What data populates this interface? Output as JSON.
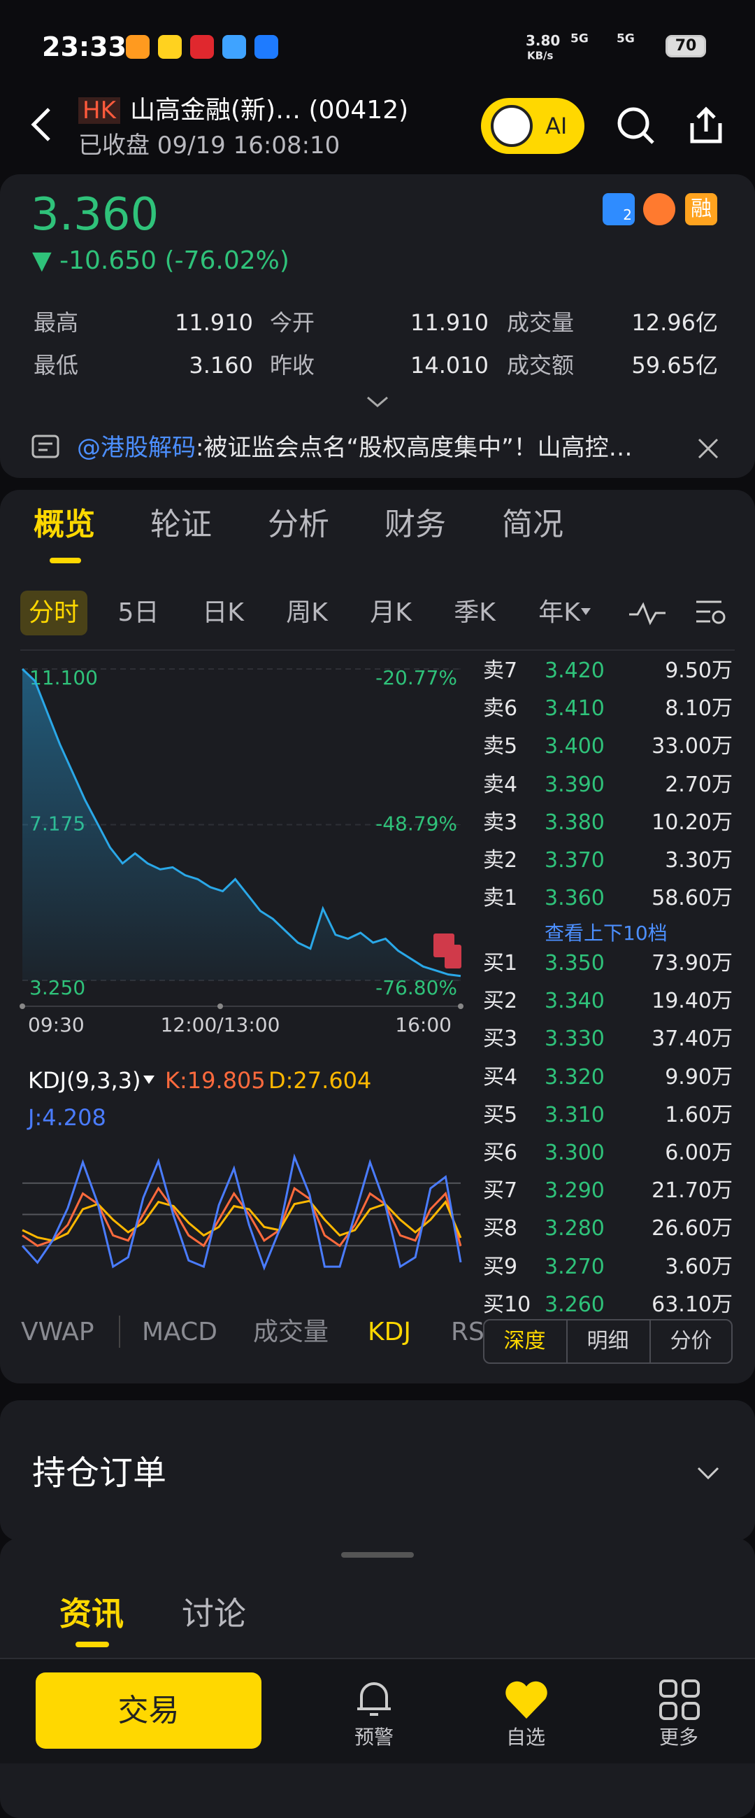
{
  "status_bar": {
    "time": "23:33",
    "speed": "3.80",
    "speed_unit": "KB/s",
    "network_1": "5G",
    "network_2": "5G",
    "battery": "70"
  },
  "header": {
    "market": "HK",
    "name": "山高金融(新)… (00412)",
    "status": "已收盘 09/19 16:08:10",
    "ai_button": "AI"
  },
  "quote": {
    "price": "3.360",
    "change": "▼ -10.650 (-76.02%)",
    "lightning_badge": "2",
    "margin_badge": "融",
    "stats": [
      [
        {
          "label": "最高",
          "value": "11.910"
        },
        {
          "label": "今开",
          "value": "11.910"
        },
        {
          "label": "成交量",
          "value": "12.96亿"
        }
      ],
      [
        {
          "label": "最低",
          "value": "3.160"
        },
        {
          "label": "昨收",
          "value": "14.010"
        },
        {
          "label": "成交额",
          "value": "59.65亿"
        }
      ]
    ]
  },
  "news": {
    "source": "@港股解码",
    "text": ":被证监会点名“股权高度集中”！山高控…"
  },
  "main_tabs": [
    "概览",
    "轮证",
    "分析",
    "财务",
    "简况"
  ],
  "period_tabs": [
    "分时",
    "5日",
    "日K",
    "周K",
    "月K",
    "季K",
    "年K"
  ],
  "chart_data": [
    {
      "type": "line",
      "color": "#2aa8e8",
      "values": [
        11.1,
        10.8,
        10.0,
        9.2,
        8.5,
        7.8,
        7.2,
        6.6,
        6.2,
        6.45,
        6.2,
        6.05,
        6.1,
        5.9,
        5.8,
        5.6,
        5.5,
        5.8,
        5.4,
        5.0,
        4.8,
        4.5,
        4.2,
        4.05,
        5.06,
        4.4,
        4.3,
        4.45,
        4.2,
        4.3,
        4.0,
        3.8,
        3.6,
        3.5,
        3.4,
        3.36
      ],
      "ylim": [
        3.25,
        11.1
      ],
      "yticks": [
        {
          "value": 11.1,
          "label": "11.100"
        },
        {
          "value": 7.175,
          "label": "7.175"
        },
        {
          "value": 3.25,
          "label": "3.250"
        }
      ],
      "y2lim": [
        -76.8,
        -20.77
      ],
      "y2ticks": [
        {
          "value": -20.77,
          "label": "-20.77%"
        },
        {
          "value": -48.79,
          "label": "-48.79%"
        },
        {
          "value": -76.8,
          "label": "-76.80%"
        }
      ],
      "xtick_labels": [
        "09:30",
        "12:00/13:00",
        "16:00"
      ]
    },
    {
      "type": "line",
      "title": "KDJ(9,3,3)",
      "ylim": [
        -20,
        120
      ],
      "gridlines": [
        20,
        50,
        80
      ],
      "series": [
        {
          "name": "K",
          "label": "K:19.805",
          "color": "#ff6a3d",
          "values": [
            30,
            20,
            25,
            40,
            70,
            60,
            30,
            25,
            50,
            75,
            55,
            30,
            20,
            45,
            70,
            50,
            25,
            35,
            75,
            65,
            30,
            20,
            40,
            70,
            60,
            30,
            25,
            55,
            70,
            19.805
          ]
        },
        {
          "name": "D",
          "label": "D:27.604",
          "color": "#ffb800",
          "values": [
            35,
            28,
            25,
            32,
            55,
            60,
            45,
            33,
            42,
            62,
            58,
            42,
            30,
            38,
            58,
            55,
            38,
            35,
            60,
            63,
            45,
            30,
            35,
            55,
            60,
            45,
            33,
            45,
            62,
            27.604
          ]
        },
        {
          "name": "J",
          "label": "J:4.208",
          "color": "#4a7cff",
          "values": [
            20,
            4,
            25,
            56,
            100,
            60,
            0,
            9,
            66,
            101,
            49,
            6,
            0,
            59,
            94,
            40,
            -1,
            35,
            105,
            69,
            0,
            0,
            50,
            100,
            60,
            0,
            9,
            75,
            86,
            4.208
          ]
        }
      ]
    }
  ],
  "order_book": {
    "asks": [
      {
        "level": "卖7",
        "price": "3.420",
        "volume": "9.50万"
      },
      {
        "level": "卖6",
        "price": "3.410",
        "volume": "8.10万"
      },
      {
        "level": "卖5",
        "price": "3.400",
        "volume": "33.00万"
      },
      {
        "level": "卖4",
        "price": "3.390",
        "volume": "2.70万"
      },
      {
        "level": "卖3",
        "price": "3.380",
        "volume": "10.20万"
      },
      {
        "level": "卖2",
        "price": "3.370",
        "volume": "3.30万"
      },
      {
        "level": "卖1",
        "price": "3.360",
        "volume": "58.60万"
      }
    ],
    "more": "查看上下10档",
    "bids": [
      {
        "level": "买1",
        "price": "3.350",
        "volume": "73.90万"
      },
      {
        "level": "买2",
        "price": "3.340",
        "volume": "19.40万"
      },
      {
        "level": "买3",
        "price": "3.330",
        "volume": "37.40万"
      },
      {
        "level": "买4",
        "price": "3.320",
        "volume": "9.90万"
      },
      {
        "level": "买5",
        "price": "3.310",
        "volume": "1.60万"
      },
      {
        "level": "买6",
        "price": "3.300",
        "volume": "6.00万"
      },
      {
        "level": "买7",
        "price": "3.290",
        "volume": "21.70万"
      },
      {
        "level": "买8",
        "price": "3.280",
        "volume": "26.60万"
      },
      {
        "level": "买9",
        "price": "3.270",
        "volume": "3.60万"
      },
      {
        "level": "买10",
        "price": "3.260",
        "volume": "63.10万"
      }
    ],
    "view_tabs": [
      "深度",
      "明细",
      "分价"
    ]
  },
  "indicator_tabs": [
    "VWAP",
    "MACD",
    "成交量",
    "KDJ",
    "RS"
  ],
  "positions": {
    "title": "持仓订单"
  },
  "feed_tabs": [
    "资讯",
    "讨论"
  ],
  "bottom_nav": {
    "trade": "交易",
    "items": [
      "预警",
      "自选",
      "更多"
    ]
  }
}
